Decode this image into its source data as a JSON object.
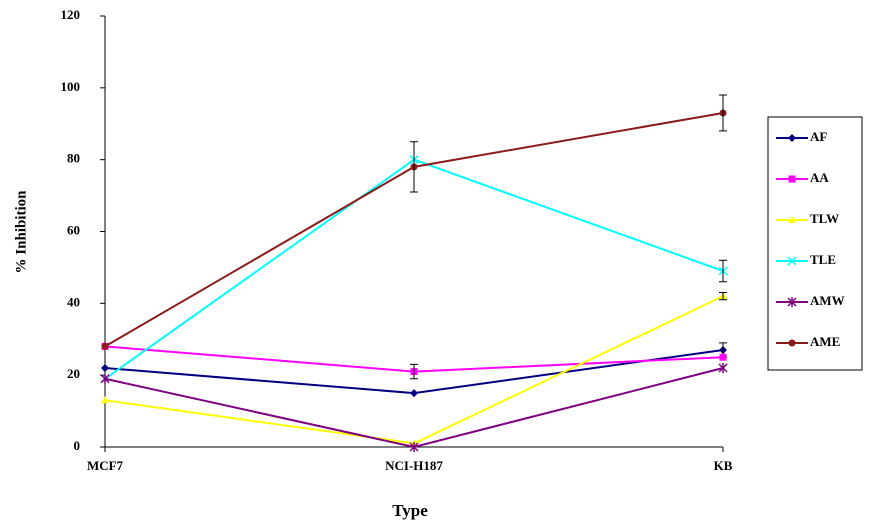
{
  "chart_data": {
    "type": "line",
    "x_label": "Type",
    "y_label": "% Inhibition",
    "categories": [
      "MCF7",
      "NCI-H187",
      "KB"
    ],
    "ylim": [
      0,
      120
    ],
    "yticks": [
      0,
      20,
      40,
      60,
      80,
      100,
      120
    ],
    "series": [
      {
        "name": "AF",
        "color": "#000080",
        "marker": "diamond",
        "values": [
          22,
          15,
          27
        ],
        "errors": [
          null,
          null,
          2
        ]
      },
      {
        "name": "AA",
        "color": "#ff00ff",
        "marker": "square",
        "values": [
          28,
          21,
          25
        ],
        "errors": [
          null,
          2,
          null
        ]
      },
      {
        "name": "TLW",
        "color": "#ffff00",
        "marker": "triangle",
        "values": [
          13,
          1,
          42
        ],
        "errors": [
          null,
          null,
          1
        ]
      },
      {
        "name": "TLE",
        "color": "#00ffff",
        "marker": "x",
        "values": [
          19,
          80,
          49
        ],
        "errors": [
          null,
          null,
          3
        ]
      },
      {
        "name": "AMW",
        "color": "#800080",
        "marker": "star",
        "values": [
          19,
          0,
          22
        ],
        "errors": [
          null,
          null,
          null
        ]
      },
      {
        "name": "AME",
        "color": "#8b1a1a",
        "marker": "circle",
        "values": [
          28,
          78,
          93
        ],
        "errors": [
          null,
          7,
          5
        ]
      }
    ]
  }
}
